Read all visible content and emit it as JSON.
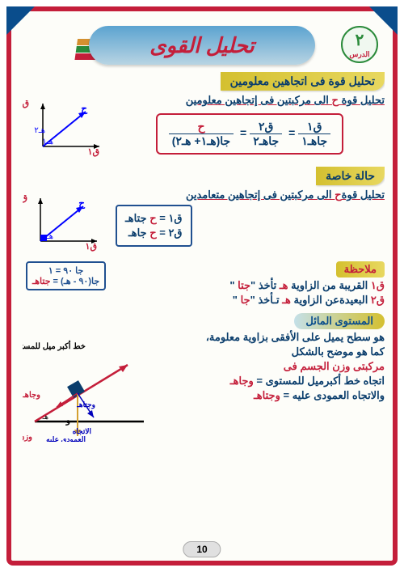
{
  "header": {
    "title": "تحليل القوى",
    "lesson_num": "٢",
    "lesson_label": "الدرس"
  },
  "sec1": {
    "bar": "تحليل قوة فى اتجاهين معلومين",
    "sub": "تحليل قوة <span class='red'>ح</span> الى مركبتين فى إتجاهين معلومين",
    "formula_n1": "ق١",
    "formula_d1": "جاهـ١",
    "formula_n2": "ق٢",
    "formula_d2": "جاهـ٢",
    "formula_n3": "<span class='red'>ح</span>",
    "formula_d3": "جا(هـ١+ هـ٢)"
  },
  "sec2": {
    "bar": "حالة خاصة",
    "sub": "تحليل قوة<span class='red'>ح</span> الى مركبتين فى إتجاهين متعامدين",
    "f1": "ق١ = <span class='red'>ح</span> جتاهـ",
    "f2": "ق٢ = <span class='red'>ح</span> جاهـ"
  },
  "sec3": {
    "bar": "ملاحظة",
    "line1": "<span class='red'>ق١</span> القريبة من الزاوية <span class='red'>هـ</span> تأخذ \"<span class='red'>جتا</span> \"",
    "line2": "<span class='red'>ق٢</span> البعيدةعن الزاوية <span class='red'>هـ</span> تـأخذ \"<span class='red'>جا</span> \"",
    "box1": "جا ٩٠ = ١",
    "box2": "جا(٩٠ - هـ) = <span class='red'>جتاهـ</span>"
  },
  "sec4": {
    "bar": "المستوى المائل",
    "l1": "هو سطح يميل على الأفقى بزاوية معلومة،",
    "l2": "كما هو موضح بالشكل",
    "l3": "مركبتى وزن الجسم فى",
    "l4": "اتجاه خط أكبرميل للمستوى = <span class='red'>وجاهـ</span>",
    "l5": "والاتجاه العمودى عليه = <span class='blue' style='color:#c41e3a'>وجتاهـ</span>",
    "d_top": "خط أكبر ميل للمستوى",
    "d_wj": "وجاهـ",
    "d_wc": "وجتاهـ",
    "d_w": "و",
    "d_perp": "الاتجاه العمودى عليه",
    "d_weight": "وزن الجسم"
  },
  "page": "10",
  "style": {
    "red": "#c41e3a",
    "blue": "#0a3d6c",
    "gold": "#d4c030",
    "green": "#2a8a3a",
    "navy": "#0a4d8c"
  }
}
